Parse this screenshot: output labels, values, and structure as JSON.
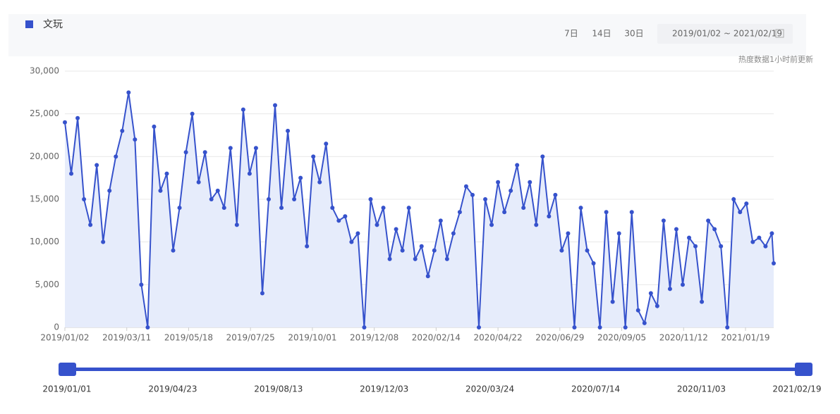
{
  "toolbar": {
    "buttons": [
      "7日",
      "14日",
      "30日"
    ],
    "date_range": "2019/01/02 ~ 2021/02/19",
    "note": "热度数据1小时前更新"
  },
  "chart_data": {
    "type": "area",
    "x": [
      "2019/01/02",
      "2019/01/09",
      "2019/01/16",
      "2019/01/23",
      "2019/01/30",
      "2019/02/06",
      "2019/02/13",
      "2019/02/20",
      "2019/02/27",
      "2019/03/06",
      "2019/03/13",
      "2019/03/20",
      "2019/03/27",
      "2019/04/03",
      "2019/04/10",
      "2019/04/17",
      "2019/04/24",
      "2019/05/01",
      "2019/05/08",
      "2019/05/15",
      "2019/05/22",
      "2019/05/29",
      "2019/06/05",
      "2019/06/12",
      "2019/06/19",
      "2019/06/26",
      "2019/07/03",
      "2019/07/10",
      "2019/07/17",
      "2019/07/24",
      "2019/07/31",
      "2019/08/07",
      "2019/08/14",
      "2019/08/21",
      "2019/08/28",
      "2019/09/04",
      "2019/09/11",
      "2019/09/18",
      "2019/09/25",
      "2019/10/02",
      "2019/10/09",
      "2019/10/16",
      "2019/10/23",
      "2019/10/30",
      "2019/11/06",
      "2019/11/13",
      "2019/11/20",
      "2019/11/27",
      "2019/12/04",
      "2019/12/11",
      "2019/12/18",
      "2019/12/25",
      "2020/01/01",
      "2020/01/08",
      "2020/01/15",
      "2020/01/22",
      "2020/01/29",
      "2020/02/05",
      "2020/02/12",
      "2020/02/19",
      "2020/02/26",
      "2020/03/04",
      "2020/03/11",
      "2020/03/18",
      "2020/03/25",
      "2020/04/01",
      "2020/04/08",
      "2020/04/15",
      "2020/04/22",
      "2020/04/29",
      "2020/05/06",
      "2020/05/13",
      "2020/05/20",
      "2020/05/27",
      "2020/06/03",
      "2020/06/10",
      "2020/06/17",
      "2020/06/24",
      "2020/07/01",
      "2020/07/08",
      "2020/07/15",
      "2020/07/22",
      "2020/07/29",
      "2020/08/05",
      "2020/08/12",
      "2020/08/19",
      "2020/08/26",
      "2020/09/02",
      "2020/09/09",
      "2020/09/16",
      "2020/09/23",
      "2020/09/30",
      "2020/10/07",
      "2020/10/14",
      "2020/10/21",
      "2020/10/28",
      "2020/11/04",
      "2020/11/11",
      "2020/11/18",
      "2020/11/25",
      "2020/12/02",
      "2020/12/09",
      "2020/12/16",
      "2020/12/23",
      "2020/12/30",
      "2021/01/06",
      "2021/01/13",
      "2021/01/20",
      "2021/01/27",
      "2021/02/03",
      "2021/02/10",
      "2021/02/17",
      "2021/02/19"
    ],
    "series": [
      {
        "name": "文玩",
        "color": "#3652cc",
        "values": [
          24000,
          18000,
          24500,
          15000,
          12000,
          19000,
          10000,
          16000,
          20000,
          23000,
          27500,
          22000,
          5000,
          0,
          23500,
          16000,
          18000,
          9000,
          14000,
          20500,
          25000,
          17000,
          20500,
          15000,
          16000,
          14000,
          21000,
          12000,
          25500,
          18000,
          21000,
          4000,
          15000,
          26000,
          14000,
          23000,
          15000,
          17500,
          9500,
          20000,
          17000,
          21500,
          14000,
          12500,
          13000,
          10000,
          11000,
          0,
          15000,
          12000,
          14000,
          8000,
          11500,
          9000,
          14000,
          8000,
          9500,
          6000,
          9000,
          12500,
          8000,
          11000,
          13500,
          16500,
          15500,
          0,
          15000,
          12000,
          17000,
          13500,
          16000,
          19000,
          14000,
          17000,
          12000,
          20000,
          13000,
          15500,
          9000,
          11000,
          0,
          14000,
          9000,
          7500,
          0,
          13500,
          3000,
          11000,
          0,
          13500,
          2000,
          500,
          4000,
          2500,
          12500,
          4500,
          11500,
          5000,
          10500,
          9500,
          3000,
          12500,
          11500,
          9500,
          0,
          15000,
          13500,
          14500,
          10000,
          10500,
          9500,
          11000,
          7500
        ]
      }
    ],
    "xlim": [
      "2019/01/02",
      "2021/02/19"
    ],
    "xticks": [
      "2019/01/02",
      "2019/03/11",
      "2019/05/18",
      "2019/07/25",
      "2019/10/01",
      "2019/12/08",
      "2020/02/14",
      "2020/04/22",
      "2020/06/29",
      "2020/09/05",
      "2020/11/12",
      "2021/01/19"
    ],
    "ylim": [
      0,
      30000
    ],
    "yticks": [
      0,
      {
        "value": 5000,
        "label": "5,000"
      },
      {
        "value": 10000,
        "label": "10,000"
      },
      {
        "value": 15000,
        "label": "15,000"
      },
      {
        "value": 20000,
        "label": "20,000"
      },
      {
        "value": 25000,
        "label": "25,000"
      },
      {
        "value": 30000,
        "label": "30,000"
      }
    ],
    "grid": true
  },
  "slider": {
    "labels": [
      "2019/01/01",
      "2019/04/23",
      "2019/08/13",
      "2019/12/03",
      "2020/03/24",
      "2020/07/14",
      "2020/11/03",
      "2021/02/19"
    ]
  }
}
